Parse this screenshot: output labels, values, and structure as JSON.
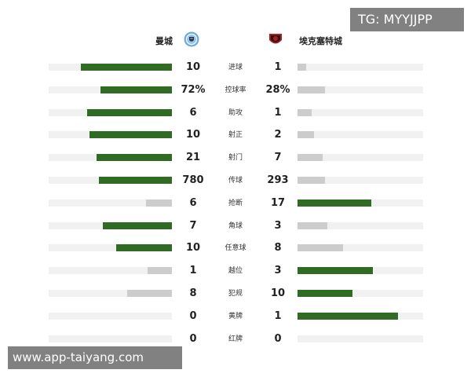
{
  "teams": {
    "home": {
      "name": "曼城",
      "logo_icon": "manchester-city-crest-icon"
    },
    "away": {
      "name": "埃克塞特城",
      "logo_icon": "exeter-city-crest-icon"
    }
  },
  "colors": {
    "leading_bar": "#2f6b22",
    "trailing_bar": "#cccccc",
    "track": "#f1f1f1"
  },
  "stats": [
    {
      "label": "进球",
      "home": "10",
      "away": "1",
      "home_fill": 0.74,
      "away_fill": 0.07
    },
    {
      "label": "控球率",
      "home": "72%",
      "away": "28%",
      "home_fill": 0.58,
      "away_fill": 0.22
    },
    {
      "label": "助攻",
      "home": "6",
      "away": "1",
      "home_fill": 0.69,
      "away_fill": 0.11
    },
    {
      "label": "射正",
      "home": "10",
      "away": "2",
      "home_fill": 0.67,
      "away_fill": 0.13
    },
    {
      "label": "射门",
      "home": "21",
      "away": "7",
      "home_fill": 0.61,
      "away_fill": 0.2
    },
    {
      "label": "传球",
      "home": "780",
      "away": "293",
      "home_fill": 0.59,
      "away_fill": 0.22
    },
    {
      "label": "抢断",
      "home": "6",
      "away": "17",
      "home_fill": 0.21,
      "away_fill": 0.59
    },
    {
      "label": "角球",
      "home": "7",
      "away": "3",
      "home_fill": 0.56,
      "away_fill": 0.24
    },
    {
      "label": "任意球",
      "home": "10",
      "away": "8",
      "home_fill": 0.45,
      "away_fill": 0.36
    },
    {
      "label": "越位",
      "home": "1",
      "away": "3",
      "home_fill": 0.2,
      "away_fill": 0.6
    },
    {
      "label": "犯规",
      "home": "8",
      "away": "10",
      "home_fill": 0.36,
      "away_fill": 0.44
    },
    {
      "label": "黄牌",
      "home": "0",
      "away": "1",
      "home_fill": 0.0,
      "away_fill": 0.8
    },
    {
      "label": "红牌",
      "home": "0",
      "away": "0",
      "home_fill": 0.0,
      "away_fill": 0.0
    }
  ],
  "watermarks": {
    "tg": "TG: MYYJJPP",
    "url": "www.app-taiyang.com"
  }
}
